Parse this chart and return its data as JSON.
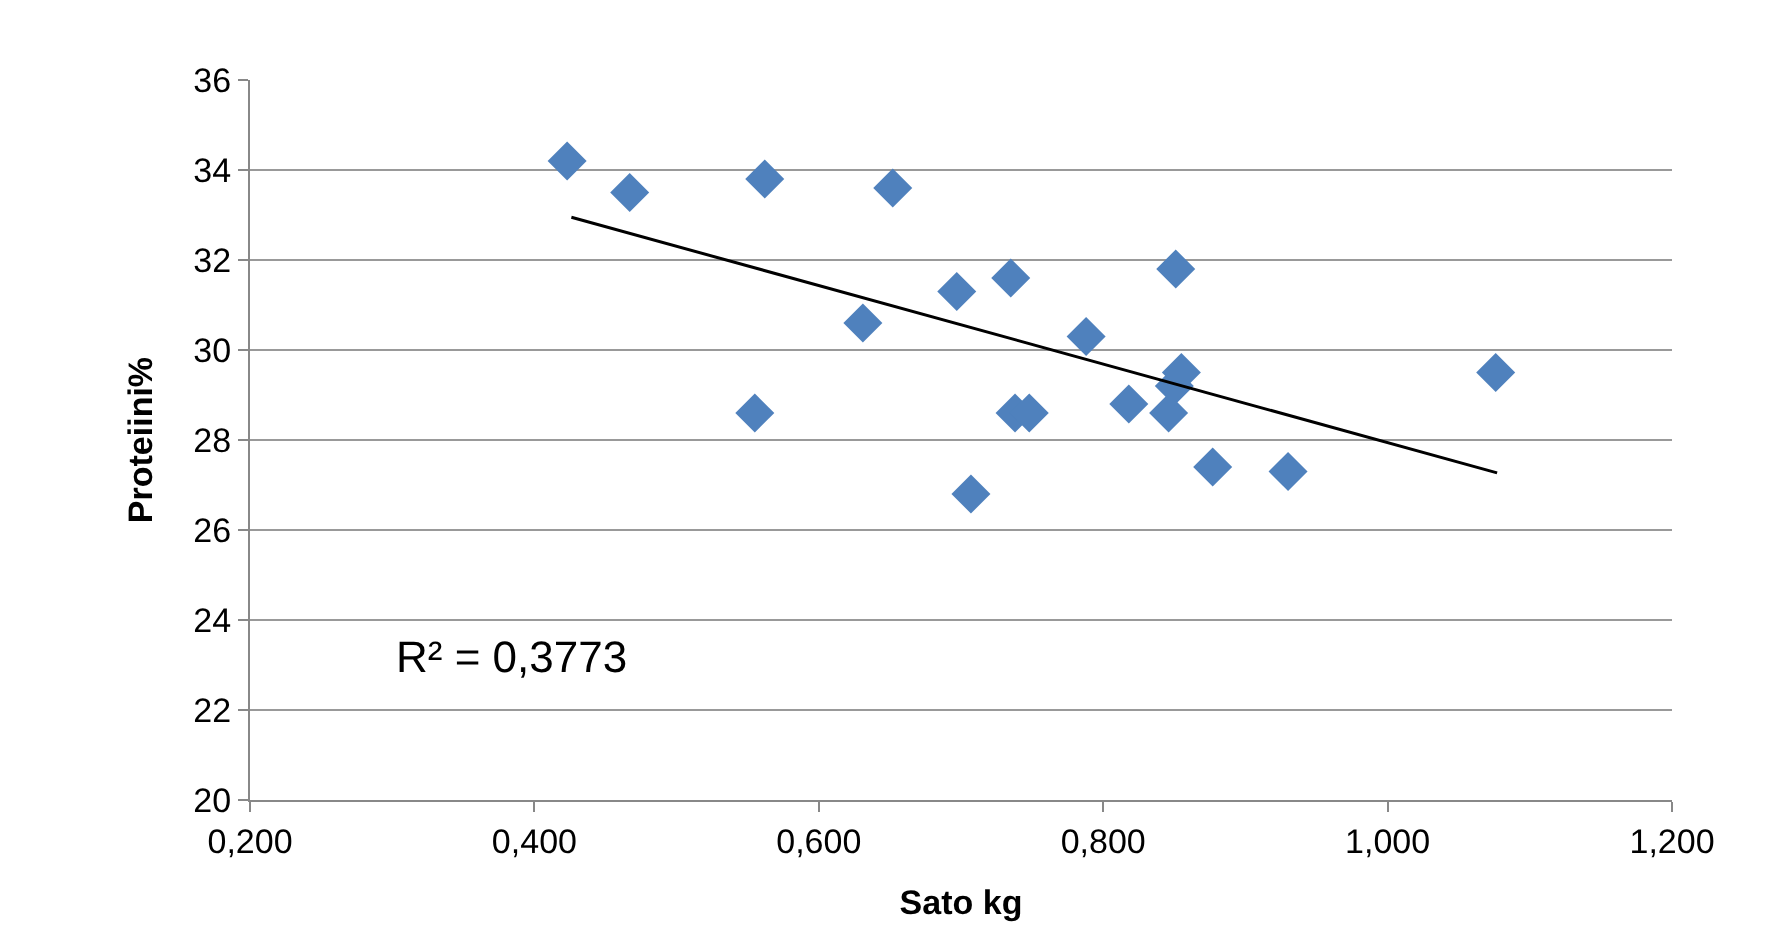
{
  "chart_data": {
    "type": "scatter",
    "xlabel": "Sato kg",
    "ylabel": "Proteiini%",
    "marker": "diamond",
    "grid": "y",
    "xlim": [
      0.2,
      1.2
    ],
    "xticks": [
      {
        "value": 0.2,
        "label": "0,200"
      },
      {
        "value": 0.4,
        "label": "0,400"
      },
      {
        "value": 0.6,
        "label": "0,600"
      },
      {
        "value": 0.8,
        "label": "0,800"
      },
      {
        "value": 1.0,
        "label": "1,000"
      },
      {
        "value": 1.2,
        "label": "1,200"
      }
    ],
    "ylim": [
      20,
      36
    ],
    "yticks": [
      20,
      22,
      24,
      26,
      28,
      30,
      32,
      34,
      36
    ],
    "annotations": [
      "R² = 0,3773"
    ],
    "series": [
      {
        "color": "#4f81bd",
        "x": [
          0.423,
          0.467,
          0.562,
          0.652,
          0.697,
          0.735,
          0.631,
          0.788,
          0.851,
          0.555,
          0.738,
          0.748,
          0.818,
          0.846,
          0.855,
          0.85,
          0.877,
          0.93,
          0.707,
          1.076
        ],
        "values": [
          34.2,
          33.5,
          33.8,
          33.6,
          31.3,
          31.6,
          30.6,
          30.3,
          31.8,
          28.6,
          28.6,
          28.6,
          28.8,
          28.6,
          29.5,
          29.2,
          27.4,
          27.3,
          26.8,
          29.5
        ]
      },
      {
        "type": "line",
        "marker": "none",
        "color": "#000000",
        "x": [
          0.426,
          1.077
        ],
        "values": [
          32.95,
          27.27
        ]
      }
    ]
  }
}
